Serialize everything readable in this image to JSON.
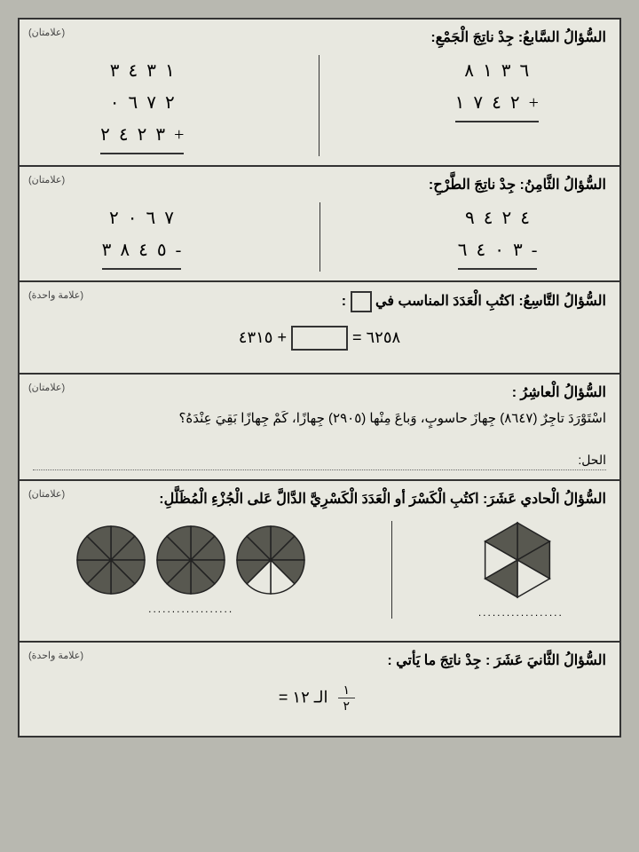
{
  "q7": {
    "title": "السُّؤالُ السَّابعُ: جِدْ ناتِجَ الْجَمْعِ:",
    "marks": "(علامتان)",
    "left": {
      "row1": "١  ٣  ٤  ٣",
      "row2": "٢  ٧  ٦  ٠",
      "row3": "٣  ٢  ٤  ٢  +"
    },
    "right": {
      "row1": "٦  ٣  ١  ٨",
      "row2": "٢  ٤  ٧  ١  +"
    }
  },
  "q8": {
    "title": "السُّؤالُ الثَّامِنُ: جِدْ ناتِجَ الطَّرْحِ:",
    "marks": "(علامتان)",
    "left": {
      "row1": "٧  ٦  ٠  ٢",
      "row2": "٥  ٤  ٨  ٣  -"
    },
    "right": {
      "row1": "٤  ٢  ٤  ٩",
      "row2": "٣  ٠  ٤  ٦  -"
    }
  },
  "q9": {
    "title_pre": "السُّؤالُ التَّاسِعُ: اكتُبِ الْعَدَدَ المناسب في ",
    "title_post": " :",
    "marks": "(علامة واحدة)",
    "eq_left": "٦٢٥٨ = ",
    "eq_right": " + ٤٣١٥"
  },
  "q10": {
    "title": "السُّؤالُ الْعاشِرُ :",
    "marks": "(علامتان)",
    "problem": "اسْتَوْرَدَ تاجِرٌ (٨٦٤٧) جِهازَ حاسوبٍ، وَباعَ مِنْها (٢٩٠٥) جِهازًا، كَمْ جِهازًا بَقِيَ عِنْدَهُ؟",
    "solution_label": "الحل:"
  },
  "q11": {
    "title": "السُّؤالُ الْحادي عَشَرَ: اكتُبِ الْكَسْرَ أو الْعَدَدَ الْكَسْرِيَّ الدَّالَّ عَلى الْجُزْءِ الْمُظَلَّلِ:",
    "marks": "(علامتان)",
    "dots": "..................",
    "circles_shaded": {
      "c1": [
        1,
        1,
        1,
        1,
        1,
        1,
        1,
        1
      ],
      "c2": [
        1,
        1,
        1,
        1,
        1,
        1,
        1,
        1
      ],
      "c3": [
        1,
        1,
        1,
        0,
        0,
        1,
        1,
        1
      ]
    },
    "hex_shaded": [
      1,
      1,
      0,
      1,
      0,
      1
    ],
    "fill_dark": "#585850",
    "fill_light": "#e8e8e0",
    "stroke": "#222"
  },
  "q12": {
    "title": "السُّؤالُ الثَّانيَ عَشَرَ : جِدْ ناتِجَ ما يَأتي :",
    "marks": "(علامة واحدة)",
    "frac_top": "١",
    "frac_bot": "٢",
    "text": " الـ ١٢ = "
  }
}
